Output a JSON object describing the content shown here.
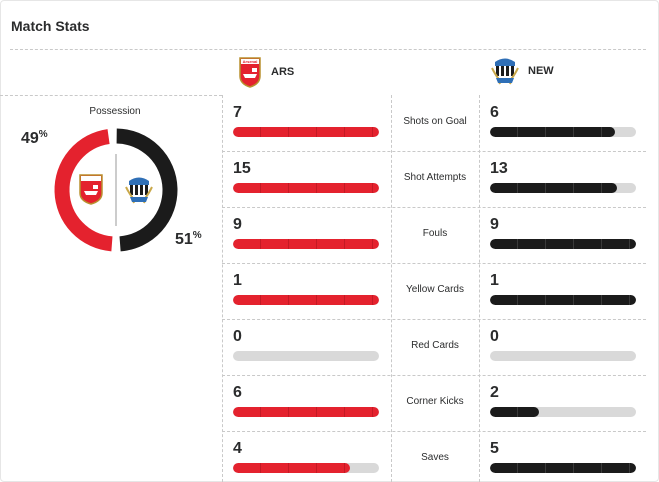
{
  "header": {
    "title": "Match Stats"
  },
  "teams": {
    "home": {
      "abbr": "ARS",
      "crest_text": "Arsenal",
      "color": "#e4222e"
    },
    "away": {
      "abbr": "NEW",
      "color": "#1b1b1b"
    }
  },
  "possession": {
    "label": "Possession",
    "home_value": "49",
    "away_value": "51",
    "unit": "%",
    "home_fraction": 0.49,
    "away_fraction": 0.51
  },
  "stats": [
    {
      "label": "Shots on Goal",
      "home": "7",
      "away": "6",
      "home_fill": 1.0,
      "away_fill": 0.857
    },
    {
      "label": "Shot Attempts",
      "home": "15",
      "away": "13",
      "home_fill": 1.0,
      "away_fill": 0.867
    },
    {
      "label": "Fouls",
      "home": "9",
      "away": "9",
      "home_fill": 1.0,
      "away_fill": 1.0
    },
    {
      "label": "Yellow Cards",
      "home": "1",
      "away": "1",
      "home_fill": 1.0,
      "away_fill": 1.0
    },
    {
      "label": "Red Cards",
      "home": "0",
      "away": "0",
      "home_fill": 0,
      "away_fill": 0
    },
    {
      "label": "Corner Kicks",
      "home": "6",
      "away": "2",
      "home_fill": 1.0,
      "away_fill": 0.333
    },
    {
      "label": "Saves",
      "home": "4",
      "away": "5",
      "home_fill": 0.8,
      "away_fill": 1.0
    }
  ]
}
